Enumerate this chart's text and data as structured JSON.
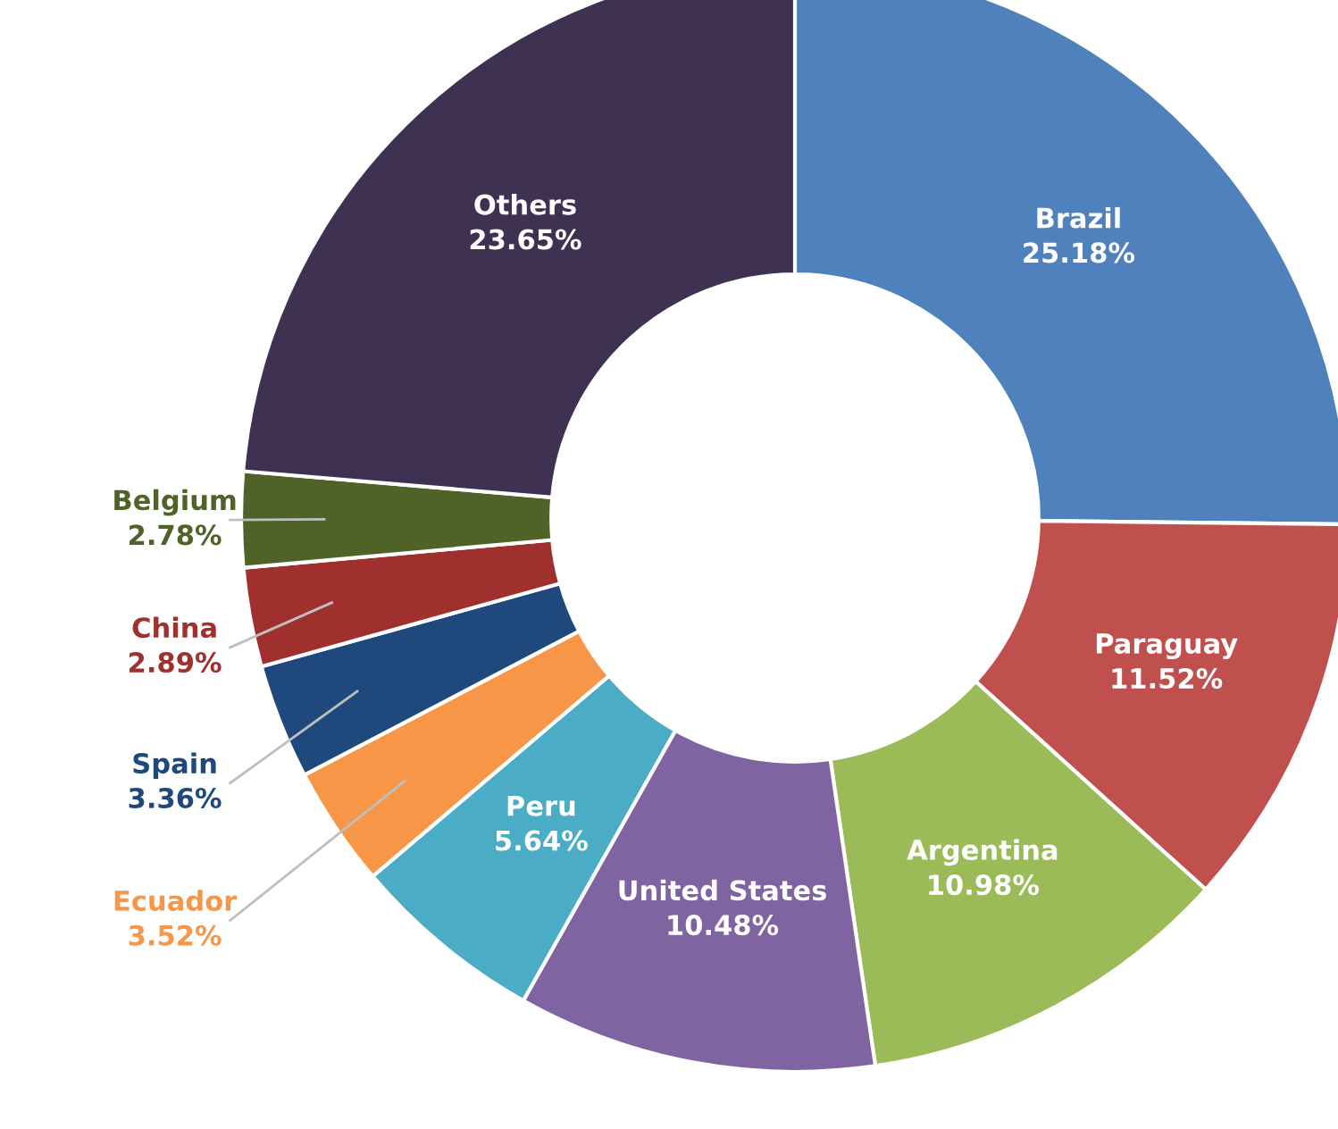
{
  "chart_data": {
    "type": "donut",
    "categories": [
      "Brazil",
      "Paraguay",
      "Argentina",
      "United States",
      "Peru",
      "Ecuador",
      "Spain",
      "China",
      "Belgium",
      "Others"
    ],
    "values": [
      25.18,
      11.52,
      10.98,
      10.48,
      5.64,
      3.52,
      3.36,
      2.89,
      2.78,
      23.65
    ],
    "colors": [
      "#4f81bd",
      "#c0504d",
      "#9bbb59",
      "#8064a2",
      "#4bacc6",
      "#f79646",
      "#1f497d",
      "#a0302d",
      "#4f6228",
      "#3f3151"
    ],
    "value_labels": [
      "25.18%",
      "11.52%",
      "10.98%",
      "10.48%",
      "5.64%",
      "3.52%",
      "3.36%",
      "2.89%",
      "2.78%",
      "23.65%"
    ]
  }
}
